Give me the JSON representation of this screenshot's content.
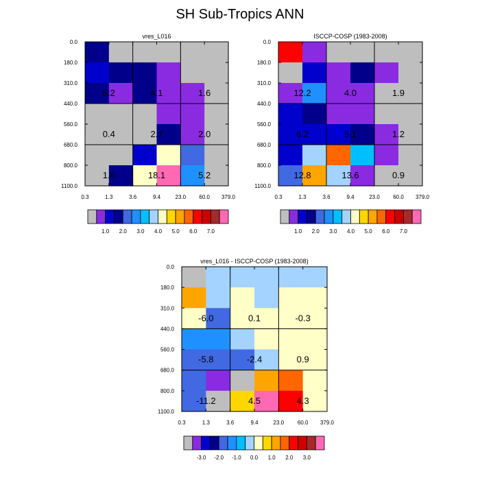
{
  "figure_title": "SH Sub-Tropics ANN",
  "chart_data": [
    {
      "type": "heatmap",
      "title": "vres_L016",
      "x_tick_labels": [
        "0.3",
        "1.3",
        "3.6",
        "9.4",
        "23.0",
        "60.0",
        "379.0"
      ],
      "y_tick_labels": [
        "0.0",
        "180.0",
        "310.0",
        "440.0",
        "560.0",
        "680.0",
        "800.0",
        "1100.0"
      ],
      "cell_colors": [
        [
          "#00008B",
          "#BEBEBE",
          "#BEBEBE",
          "#BEBEBE",
          "#BEBEBE",
          "#BEBEBE"
        ],
        [
          "#0000CD",
          "#00008B",
          "#00008B",
          "#8A2BE2",
          "#BEBEBE",
          "#BEBEBE"
        ],
        [
          "#00008B",
          "#8A2BE2",
          "#00008B",
          "#8A2BE2",
          "#8A2BE2",
          "#BEBEBE"
        ],
        [
          "#BEBEBE",
          "#BEBEBE",
          "#BEBEBE",
          "#8A2BE2",
          "#8A2BE2",
          "#BEBEBE"
        ],
        [
          "#BEBEBE",
          "#BEBEBE",
          "#BEBEBE",
          "#00008B",
          "#8A2BE2",
          "#BEBEBE"
        ],
        [
          "#BEBEBE",
          "#BEBEBE",
          "#0000CD",
          "#FFFFC8",
          "#4169E1",
          "#BEBEBE"
        ],
        [
          "#BEBEBE",
          "#00008B",
          "#FFFFC8",
          "#FF69B4",
          "#1E90FF",
          "#BEBEBE"
        ]
      ],
      "box_values": [
        [
          "6.2",
          "4.1",
          "1.6"
        ],
        [
          "0.4",
          "2.7",
          "2.0"
        ],
        [
          "1.6",
          "18.1",
          "5.2"
        ]
      ]
    },
    {
      "type": "heatmap",
      "title": "ISCCP-COSP (1983-2008)",
      "x_tick_labels": [
        "0.3",
        "1.3",
        "3.6",
        "9.4",
        "23.0",
        "60.0",
        "379.0"
      ],
      "y_tick_labels": [
        "0.0",
        "180.0",
        "310.0",
        "440.0",
        "560.0",
        "680.0",
        "800.0",
        "1100.0"
      ],
      "cell_colors": [
        [
          "#FF0000",
          "#8A2BE2",
          "#BEBEBE",
          "#BEBEBE",
          "#BEBEBE",
          "#BEBEBE"
        ],
        [
          "#BEBEBE",
          "#0000CD",
          "#8A2BE2",
          "#00008B",
          "#8A2BE2",
          "#BEBEBE"
        ],
        [
          "#8A2BE2",
          "#1E90FF",
          "#8A2BE2",
          "#8A2BE2",
          "#BEBEBE",
          "#BEBEBE"
        ],
        [
          "#0000CD",
          "#00008B",
          "#8A2BE2",
          "#8A2BE2",
          "#BEBEBE",
          "#BEBEBE"
        ],
        [
          "#0000CD",
          "#0000CD",
          "#0000CD",
          "#00008B",
          "#8A2BE2",
          "#BEBEBE"
        ],
        [
          "#0000CD",
          "#A4D3FF",
          "#FF6600",
          "#00BFFF",
          "#8A2BE2",
          "#BEBEBE"
        ],
        [
          "#4169E1",
          "#FFA500",
          "#A4D3FF",
          "#8A2BE2",
          "#BEBEBE",
          "#BEBEBE"
        ]
      ],
      "box_values": [
        [
          "12.2",
          "4.0",
          "1.9"
        ],
        [
          "6.2",
          "5.1",
          "1.2"
        ],
        [
          "12.8",
          "13.6",
          "0.9"
        ]
      ]
    },
    {
      "type": "heatmap",
      "title": "vres_L016 - ISCCP-COSP (1983-2008)",
      "x_tick_labels": [
        "0.3",
        "1.3",
        "3.6",
        "9.4",
        "23.0",
        "60.0",
        "379.0"
      ],
      "y_tick_labels": [
        "0.0",
        "180.0",
        "310.0",
        "440.0",
        "560.0",
        "680.0",
        "800.0",
        "1100.0"
      ],
      "cell_colors": [
        [
          "#BEBEBE",
          "#A4D3FF",
          "#A4D3FF",
          "#A4D3FF",
          "#A4D3FF",
          "#A4D3FF"
        ],
        [
          "#FFA500",
          "#A4D3FF",
          "#FFFFC8",
          "#A4D3FF",
          "#FFFFC8",
          "#FFFFC8"
        ],
        [
          "#FFFFC8",
          "#4169E1",
          "#FFFFC8",
          "#FFFFC8",
          "#FFFFC8",
          "#FFFFC8"
        ],
        [
          "#1E90FF",
          "#1E90FF",
          "#A4D3FF",
          "#FFFFC8",
          "#FFFFC8",
          "#FFFFC8"
        ],
        [
          "#4169E1",
          "#4169E1",
          "#4169E1",
          "#A4D3FF",
          "#FFFFC8",
          "#FFFFC8"
        ],
        [
          "#4169E1",
          "#8A2BE2",
          "#BEBEBE",
          "#FFA500",
          "#FF6600",
          "#FFFFC8"
        ],
        [
          "#4169E1",
          "#BEBEBE",
          "#FFD700",
          "#FF69B4",
          "#FF0000",
          "#FFFFC8"
        ]
      ],
      "box_values": [
        [
          "-6.0",
          "0.1",
          "-0.3"
        ],
        [
          "-5.8",
          "-2.4",
          "0.9"
        ],
        [
          "-11.2",
          "4.5",
          "4.3"
        ]
      ]
    }
  ],
  "colorbars": [
    {
      "colors": [
        "#BEBEBE",
        "#8A2BE2",
        "#0000CD",
        "#00008B",
        "#4169E1",
        "#1E90FF",
        "#00BFFF",
        "#A4D3FF",
        "#FFFFC8",
        "#FFD700",
        "#FFA500",
        "#FF6600",
        "#FF0000",
        "#CC0000",
        "#A52A2A",
        "#FF69B4"
      ],
      "labels": [
        "1.0",
        "2.0",
        "3.0",
        "4.0",
        "5.0",
        "6.0",
        "7.0"
      ]
    },
    {
      "colors": [
        "#BEBEBE",
        "#8A2BE2",
        "#0000CD",
        "#00008B",
        "#4169E1",
        "#1E90FF",
        "#00BFFF",
        "#A4D3FF",
        "#FFFFC8",
        "#FFD700",
        "#FFA500",
        "#FF6600",
        "#FF0000",
        "#CC0000",
        "#A52A2A",
        "#FF69B4"
      ],
      "labels": [
        "1.0",
        "2.0",
        "3.0",
        "4.0",
        "5.0",
        "6.0",
        "7.0"
      ]
    },
    {
      "colors": [
        "#BEBEBE",
        "#8A2BE2",
        "#0000CD",
        "#00008B",
        "#4169E1",
        "#1E90FF",
        "#00BFFF",
        "#A4D3FF",
        "#FFFFC8",
        "#FFD700",
        "#FFA500",
        "#FF6600",
        "#FF0000",
        "#CC0000",
        "#A52A2A",
        "#FF69B4"
      ],
      "labels": [
        "-3.0",
        "-2.0",
        "-1.0",
        "0.0",
        "1.0",
        "2.0",
        "3.0"
      ]
    }
  ]
}
